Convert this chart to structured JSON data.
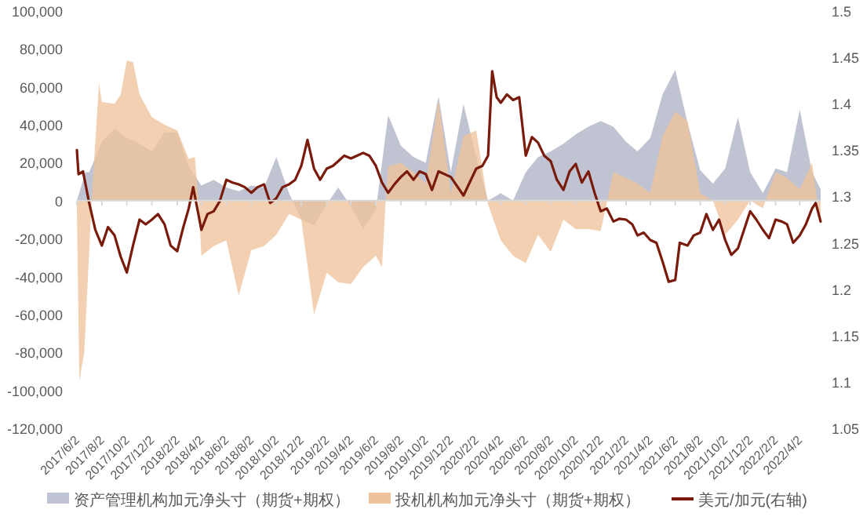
{
  "chart_data": {
    "type": "area",
    "legend": "bottom",
    "xlim": [
      "2017-06-02",
      "2022-05-23"
    ],
    "xticks": [
      {
        "value": "2017-06-02",
        "label": "2017/6/2"
      },
      {
        "value": "2017-08-02",
        "label": "2017/8/2"
      },
      {
        "value": "2017-10-02",
        "label": "2017/10/2"
      },
      {
        "value": "2017-12-02",
        "label": "2017/12/2"
      },
      {
        "value": "2018-02-02",
        "label": "2018/2/2"
      },
      {
        "value": "2018-04-02",
        "label": "2018/4/2"
      },
      {
        "value": "2018-06-02",
        "label": "2018/6/2"
      },
      {
        "value": "2018-08-02",
        "label": "2018/8/2"
      },
      {
        "value": "2018-10-02",
        "label": "2018/10/2"
      },
      {
        "value": "2018-12-02",
        "label": "2018/12/2"
      },
      {
        "value": "2019-02-02",
        "label": "2019/2/2"
      },
      {
        "value": "2019-04-02",
        "label": "2019/4/2"
      },
      {
        "value": "2019-06-02",
        "label": "2019/6/2"
      },
      {
        "value": "2019-08-02",
        "label": "2019/8/2"
      },
      {
        "value": "2019-10-02",
        "label": "2019/10/2"
      },
      {
        "value": "2019-12-02",
        "label": "2019/12/2"
      },
      {
        "value": "2020-02-02",
        "label": "2020/2/2"
      },
      {
        "value": "2020-04-02",
        "label": "2020/4/2"
      },
      {
        "value": "2020-06-02",
        "label": "2020/6/2"
      },
      {
        "value": "2020-08-02",
        "label": "2020/8/2"
      },
      {
        "value": "2020-10-02",
        "label": "2020/10/2"
      },
      {
        "value": "2020-12-02",
        "label": "2020/12/2"
      },
      {
        "value": "2021-02-02",
        "label": "2021/2/2"
      },
      {
        "value": "2021-04-02",
        "label": "2021/4/2"
      },
      {
        "value": "2021-06-02",
        "label": "2021/6/2"
      },
      {
        "value": "2021-08-02",
        "label": "2021/8/2"
      },
      {
        "value": "2021-10-02",
        "label": "2021/10/2"
      },
      {
        "value": "2021-12-02",
        "label": "2021/12/2"
      },
      {
        "value": "2022-02-02",
        "label": "2022/2/2"
      },
      {
        "value": "2022-04-02",
        "label": "2022/4/2"
      }
    ],
    "ylim": [
      -120000,
      100000
    ],
    "yticks": [
      {
        "value": -120000,
        "label": "-120,000"
      },
      {
        "value": -100000,
        "label": "-100,000"
      },
      {
        "value": -80000,
        "label": "-80,000"
      },
      {
        "value": -60000,
        "label": "-60,000"
      },
      {
        "value": -40000,
        "label": "-40,000"
      },
      {
        "value": -20000,
        "label": "-20,000"
      },
      0,
      {
        "value": 20000,
        "label": "20,000"
      },
      {
        "value": 40000,
        "label": "40,000"
      },
      {
        "value": 60000,
        "label": "60,000"
      },
      {
        "value": 80000,
        "label": "80,000"
      },
      {
        "value": 100000,
        "label": "100,000"
      }
    ],
    "y2lim": [
      1.05,
      1.5
    ],
    "y2ticks": [
      1.05,
      1.1,
      1.15,
      1.2,
      1.25,
      1.3,
      1.35,
      1.4,
      1.45,
      1.5
    ],
    "series": [
      {
        "name": "资产管理机构加元净头寸（期货+期权）",
        "color": "#c0c3d1",
        "x": [
          "2017-06-02",
          "2017-06-23",
          "2017-07-02",
          "2017-08-02",
          "2017-09-02",
          "2017-10-02",
          "2017-11-02",
          "2017-12-02",
          "2018-01-02",
          "2018-02-02",
          "2018-03-02",
          "2018-04-02",
          "2018-05-02",
          "2018-06-02",
          "2018-07-02",
          "2018-08-02",
          "2018-09-02",
          "2018-10-02",
          "2018-11-02",
          "2018-12-02",
          "2019-01-02",
          "2019-02-02",
          "2019-03-02",
          "2019-04-02",
          "2019-05-02",
          "2019-06-02",
          "2019-07-02",
          "2019-08-02",
          "2019-09-02",
          "2019-10-02",
          "2019-11-02",
          "2019-12-02",
          "2020-01-02",
          "2020-02-02",
          "2020-03-02",
          "2020-04-02",
          "2020-05-02",
          "2020-06-02",
          "2020-07-02",
          "2020-08-02",
          "2020-09-02",
          "2020-10-02",
          "2020-11-02",
          "2020-12-02",
          "2021-01-02",
          "2021-02-02",
          "2021-03-02",
          "2021-04-02",
          "2021-05-02",
          "2021-06-02",
          "2021-07-02",
          "2021-08-02",
          "2021-09-02",
          "2021-10-02",
          "2021-11-02",
          "2021-12-02",
          "2022-01-02",
          "2022-02-02",
          "2022-03-02",
          "2022-04-02",
          "2022-05-02",
          "2022-05-23"
        ],
        "values": [
          0,
          15000,
          15000,
          31000,
          38000,
          33000,
          30000,
          26000,
          36000,
          36000,
          18000,
          8000,
          11000,
          7000,
          5000,
          8000,
          7000,
          23000,
          4000,
          -10000,
          -13000,
          -2000,
          7000,
          -3000,
          -15000,
          -5000,
          45000,
          29000,
          23000,
          20000,
          55000,
          15000,
          51000,
          23000,
          0,
          4000,
          0,
          15000,
          23000,
          26000,
          30000,
          35000,
          39000,
          42000,
          39000,
          31000,
          26000,
          33000,
          56000,
          69000,
          41000,
          16000,
          9000,
          17000,
          44000,
          15000,
          4000,
          17000,
          15000,
          48000,
          15000,
          6000
        ]
      },
      {
        "name": "投机机构加元净头寸（期货+期权）",
        "color": "#eec39b",
        "x": [
          "2017-06-02",
          "2017-06-08",
          "2017-06-20",
          "2017-07-08",
          "2017-07-26",
          "2017-08-02",
          "2017-09-02",
          "2017-09-17",
          "2017-10-02",
          "2017-10-17",
          "2017-11-02",
          "2017-12-02",
          "2018-01-02",
          "2018-02-02",
          "2018-03-02",
          "2018-03-17",
          "2018-03-26",
          "2018-04-02",
          "2018-05-02",
          "2018-06-02",
          "2018-07-02",
          "2018-08-02",
          "2018-09-02",
          "2018-10-02",
          "2018-11-02",
          "2018-12-02",
          "2019-01-02",
          "2019-02-02",
          "2019-03-02",
          "2019-04-02",
          "2019-05-02",
          "2019-06-02",
          "2019-06-17",
          "2019-06-26",
          "2019-07-02",
          "2019-08-02",
          "2019-09-02",
          "2019-10-02",
          "2019-11-02",
          "2019-12-02",
          "2020-01-02",
          "2020-02-02",
          "2020-03-02",
          "2020-04-02",
          "2020-05-02",
          "2020-06-02",
          "2020-07-02",
          "2020-08-02",
          "2020-09-02",
          "2020-10-02",
          "2020-11-02",
          "2020-12-02",
          "2021-01-02",
          "2021-02-02",
          "2021-03-02",
          "2021-04-02",
          "2021-05-02",
          "2021-06-02",
          "2021-07-02",
          "2021-08-02",
          "2021-09-02",
          "2021-10-02",
          "2021-11-02",
          "2021-12-02",
          "2022-01-02",
          "2022-02-02",
          "2022-03-02",
          "2022-04-02",
          "2022-05-02",
          "2022-05-23"
        ],
        "values": [
          -4000,
          -95000,
          -80000,
          0,
          62000,
          52000,
          51000,
          56000,
          74000,
          73000,
          56000,
          44000,
          40000,
          37000,
          22000,
          23000,
          0,
          -29000,
          -24000,
          -21000,
          -50000,
          -26000,
          -24000,
          -18000,
          -7000,
          -10000,
          -60000,
          -38000,
          -43000,
          -44000,
          -35000,
          -29000,
          -35000,
          0,
          18000,
          20000,
          15000,
          9000,
          53000,
          4000,
          34000,
          37000,
          -2000,
          -21000,
          -29000,
          -33000,
          -18000,
          -27000,
          -10000,
          -15000,
          -15000,
          -16000,
          15000,
          12000,
          9000,
          4000,
          34000,
          47000,
          42000,
          4000,
          0,
          -18000,
          -10000,
          0,
          -4000,
          15000,
          12000,
          6000,
          20000,
          -13000
        ]
      },
      {
        "name": "美元/加元(右轴)",
        "type": "line",
        "axis": "y2",
        "color": "#7a1a0a",
        "line_style": "solid",
        "x": [
          "2017-06-02",
          "2017-06-06",
          "2017-06-17",
          "2017-07-02",
          "2017-07-17",
          "2017-08-02",
          "2017-08-17",
          "2017-09-02",
          "2017-09-17",
          "2017-10-02",
          "2017-10-17",
          "2017-11-02",
          "2017-11-17",
          "2017-12-02",
          "2017-12-17",
          "2018-01-02",
          "2018-01-17",
          "2018-02-02",
          "2018-02-17",
          "2018-03-02",
          "2018-03-13",
          "2018-04-02",
          "2018-04-17",
          "2018-05-02",
          "2018-05-17",
          "2018-06-02",
          "2018-06-17",
          "2018-07-02",
          "2018-07-17",
          "2018-08-02",
          "2018-08-17",
          "2018-09-02",
          "2018-09-17",
          "2018-10-02",
          "2018-10-17",
          "2018-11-02",
          "2018-11-17",
          "2018-12-02",
          "2018-12-17",
          "2019-01-02",
          "2019-01-17",
          "2019-02-02",
          "2019-02-17",
          "2019-03-02",
          "2019-03-17",
          "2019-04-02",
          "2019-04-17",
          "2019-05-02",
          "2019-05-17",
          "2019-06-02",
          "2019-06-17",
          "2019-07-02",
          "2019-07-17",
          "2019-08-02",
          "2019-08-17",
          "2019-09-02",
          "2019-09-17",
          "2019-10-02",
          "2019-10-17",
          "2019-11-02",
          "2019-12-02",
          "2020-01-02",
          "2020-02-02",
          "2020-02-17",
          "2020-03-02",
          "2020-03-12",
          "2020-03-23",
          "2020-04-02",
          "2020-04-17",
          "2020-05-02",
          "2020-05-17",
          "2020-06-02",
          "2020-06-17",
          "2020-07-02",
          "2020-07-17",
          "2020-08-02",
          "2020-08-17",
          "2020-09-02",
          "2020-09-17",
          "2020-10-02",
          "2020-10-17",
          "2020-11-02",
          "2020-11-17",
          "2020-12-02",
          "2020-12-17",
          "2021-01-02",
          "2021-01-17",
          "2021-02-02",
          "2021-02-17",
          "2021-03-02",
          "2021-03-17",
          "2021-04-02",
          "2021-04-17",
          "2021-05-02",
          "2021-05-17",
          "2021-06-02",
          "2021-06-13",
          "2021-07-02",
          "2021-07-17",
          "2021-08-02",
          "2021-08-17",
          "2021-09-02",
          "2021-09-17",
          "2021-10-02",
          "2021-10-17",
          "2021-11-02",
          "2021-11-17",
          "2021-12-02",
          "2021-12-17",
          "2022-01-02",
          "2022-01-17",
          "2022-02-02",
          "2022-02-17",
          "2022-03-02",
          "2022-03-17",
          "2022-04-02",
          "2022-04-17",
          "2022-05-02",
          "2022-05-11",
          "2022-05-23"
        ],
        "values": [
          1.35,
          1.324,
          1.327,
          1.293,
          1.264,
          1.247,
          1.267,
          1.258,
          1.235,
          1.218,
          1.247,
          1.275,
          1.27,
          1.275,
          1.281,
          1.27,
          1.247,
          1.241,
          1.267,
          1.287,
          1.31,
          1.264,
          1.281,
          1.284,
          1.295,
          1.318,
          1.315,
          1.313,
          1.31,
          1.304,
          1.31,
          1.313,
          1.293,
          1.298,
          1.31,
          1.313,
          1.318,
          1.333,
          1.361,
          1.33,
          1.318,
          1.33,
          1.333,
          1.338,
          1.344,
          1.341,
          1.344,
          1.347,
          1.344,
          1.333,
          1.315,
          1.304,
          1.313,
          1.321,
          1.327,
          1.318,
          1.327,
          1.324,
          1.307,
          1.327,
          1.321,
          1.301,
          1.33,
          1.333,
          1.344,
          1.435,
          1.407,
          1.401,
          1.41,
          1.404,
          1.407,
          1.344,
          1.364,
          1.358,
          1.344,
          1.338,
          1.318,
          1.307,
          1.327,
          1.335,
          1.315,
          1.327,
          1.304,
          1.284,
          1.287,
          1.273,
          1.276,
          1.275,
          1.27,
          1.258,
          1.261,
          1.253,
          1.25,
          1.23,
          1.208,
          1.21,
          1.25,
          1.247,
          1.258,
          1.261,
          1.281,
          1.264,
          1.275,
          1.253,
          1.237,
          1.244,
          1.264,
          1.284,
          1.275,
          1.264,
          1.255,
          1.275,
          1.273,
          1.27,
          1.25,
          1.258,
          1.27,
          1.287,
          1.293,
          1.273
        ]
      }
    ]
  }
}
